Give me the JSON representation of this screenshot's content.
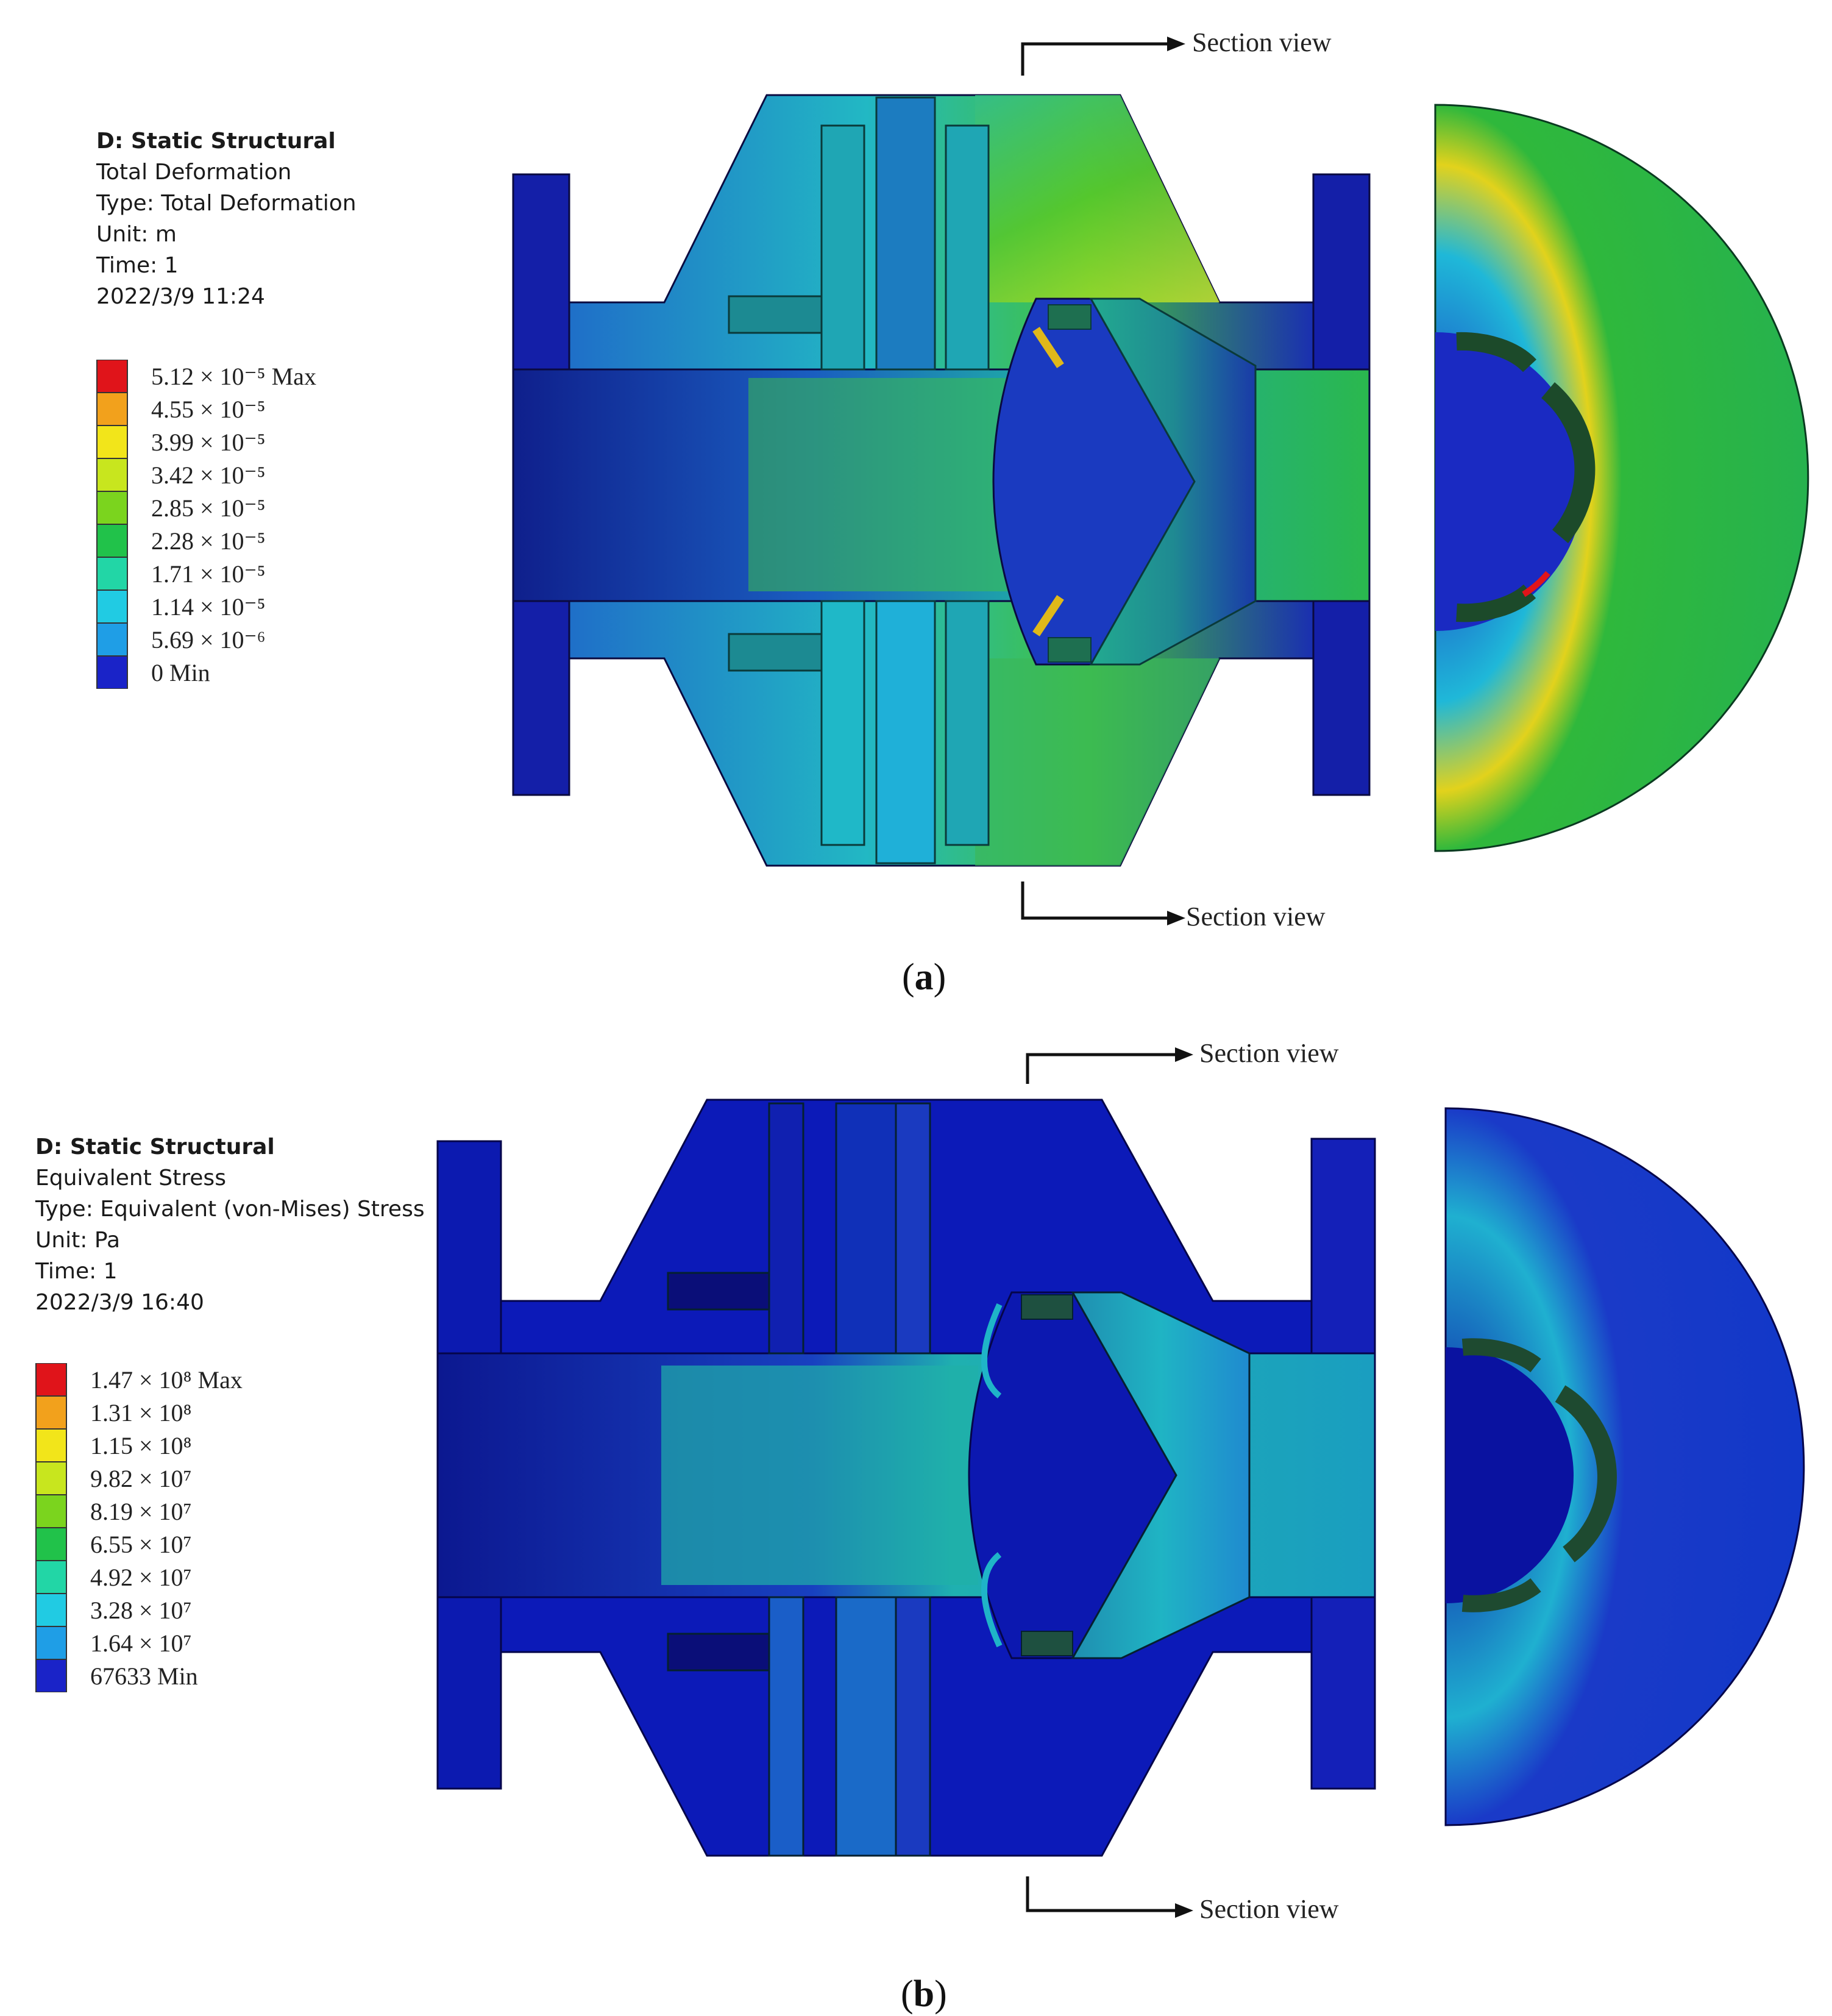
{
  "panels": [
    {
      "id": "a",
      "caption": "a",
      "info": {
        "line1": "D: Static Structural",
        "line2": "Total Deformation",
        "line3": "Type: Total Deformation",
        "line4": "Unit: m",
        "line5": "Time: 1",
        "line6": "2022/3/9 11:24"
      },
      "legend": [
        {
          "label": "5.12 × 10⁻⁵ Max",
          "color": "#e0141a"
        },
        {
          "label": "4.55 × 10⁻⁵",
          "color": "#f2a11c"
        },
        {
          "label": "3.99 × 10⁻⁵",
          "color": "#f2e51a"
        },
        {
          "label": "3.42 × 10⁻⁵",
          "color": "#c8e61e"
        },
        {
          "label": "2.85 × 10⁻⁵",
          "color": "#7bd41e"
        },
        {
          "label": "2.28 × 10⁻⁵",
          "color": "#21c24a"
        },
        {
          "label": "1.71 × 10⁻⁵",
          "color": "#22d6a6"
        },
        {
          "label": "1.14 × 10⁻⁵",
          "color": "#21cbe3"
        },
        {
          "label": "5.69 × 10⁻⁶",
          "color": "#1f9ee6"
        },
        {
          "label": "0 Min",
          "color": "#1a23c8"
        }
      ],
      "section_top": "Section view",
      "section_bottom": "Section view"
    },
    {
      "id": "b",
      "caption": "b",
      "info": {
        "line1": "D: Static Structural",
        "line2": "Equivalent Stress",
        "line3": "Type: Equivalent (von-Mises) Stress",
        "line4": "Unit: Pa",
        "line5": "Time: 1",
        "line6": "2022/3/9 16:40"
      },
      "legend": [
        {
          "label": "1.47 × 10⁸ Max",
          "color": "#e0141a"
        },
        {
          "label": "1.31 × 10⁸",
          "color": "#f2a11c"
        },
        {
          "label": "1.15 × 10⁸",
          "color": "#f2e51a"
        },
        {
          "label": "9.82 × 10⁷",
          "color": "#c8e61e"
        },
        {
          "label": "8.19 × 10⁷",
          "color": "#7bd41e"
        },
        {
          "label": "6.55 × 10⁷",
          "color": "#21c24a"
        },
        {
          "label": "4.92 × 10⁷",
          "color": "#22d6a6"
        },
        {
          "label": "3.28 × 10⁷",
          "color": "#21cbe3"
        },
        {
          "label": "1.64 × 10⁷",
          "color": "#1f9ee6"
        },
        {
          "label": "67633 Min",
          "color": "#1a23c8"
        }
      ],
      "section_top": "Section view",
      "section_bottom": "Section view"
    }
  ]
}
